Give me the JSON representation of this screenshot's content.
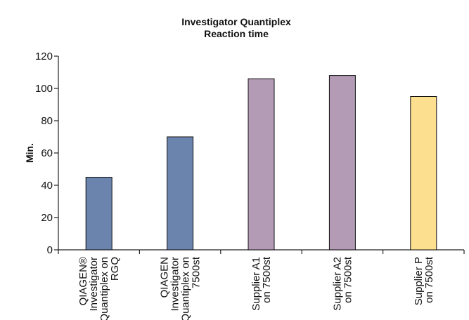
{
  "chart_data": {
    "type": "bar",
    "title": [
      "Investigator Quantiplex",
      "Reaction time"
    ],
    "xlabel": "",
    "ylabel": "Min.",
    "ylim": [
      0,
      120
    ],
    "yticks": [
      0,
      20,
      40,
      60,
      80,
      100,
      120
    ],
    "categories": [
      [
        "QIAGEN®",
        "Investigator",
        "Quantiplex on",
        "RGQ"
      ],
      [
        "QIAGEN",
        "Investigator",
        "Quantiplex on",
        "7500st"
      ],
      [
        "Supplier A1",
        "on 7500st"
      ],
      [
        "Supplier A2",
        "on 7500st"
      ],
      [
        "Supplier P",
        "on 7500st"
      ]
    ],
    "values": [
      45,
      70,
      106,
      108,
      95
    ],
    "colors": [
      "#6b84ad",
      "#6b84ad",
      "#b39bb5",
      "#b39bb5",
      "#fce08f"
    ],
    "grid": false,
    "legend": "none"
  }
}
